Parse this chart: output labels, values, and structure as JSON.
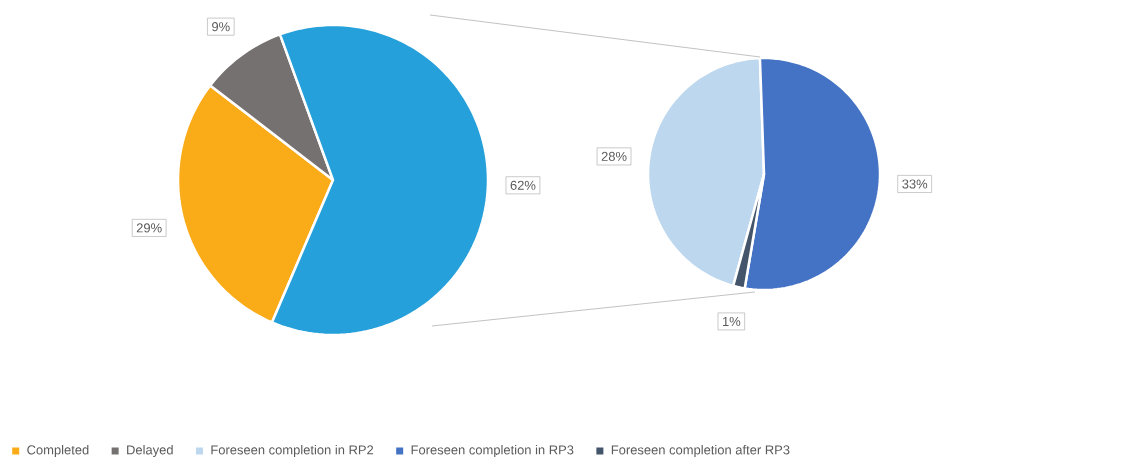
{
  "chart_data": [
    {
      "type": "pie",
      "categories": [
        "Completed",
        "Delayed",
        null
      ],
      "values": [
        29,
        9,
        62
      ],
      "colors": [
        "#faab18",
        "#767171",
        "#25a0da"
      ],
      "value_labels": [
        "29%",
        "9%",
        "62%"
      ],
      "legend": "bottom"
    },
    {
      "type": "pie",
      "categories": [
        "Foreseen completion in RP2",
        "Foreseen completion in RP3",
        "Foreseen completion after RP3"
      ],
      "values": [
        28,
        33,
        1
      ],
      "colors": [
        "#bdd7ee",
        "#4472c4",
        "#44546a"
      ],
      "value_labels": [
        "28%",
        "33%",
        "1%"
      ],
      "legend": "bottom"
    }
  ]
}
